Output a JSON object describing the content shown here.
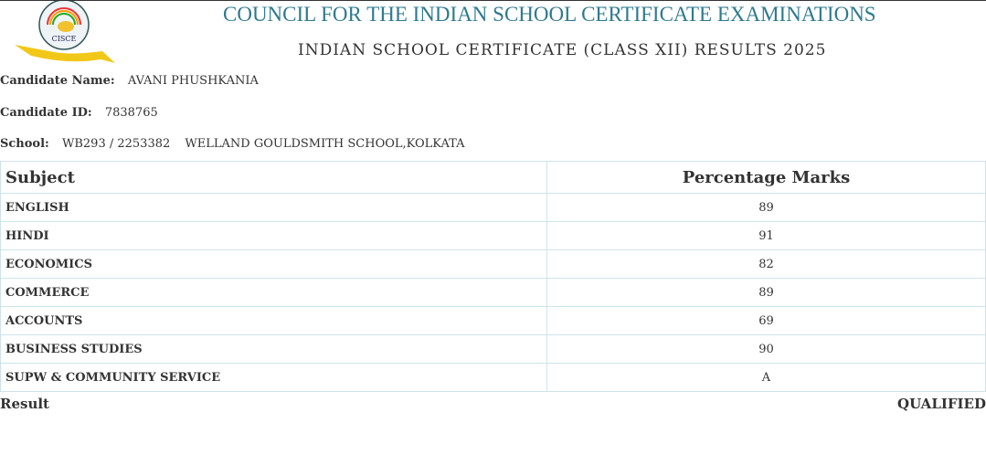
{
  "header": {
    "logo_text": "CISCE",
    "title": "COUNCIL FOR THE INDIAN SCHOOL CERTIFICATE EXAMINATIONS",
    "subtitle": "INDIAN SCHOOL CERTIFICATE (CLASS XII) RESULTS 2025"
  },
  "candidate": {
    "name_label": "Candidate Name:",
    "name": "AVANI PHUSHKANIA",
    "id_label": "Candidate ID:",
    "id": "7838765",
    "school_label": "School:",
    "school_code": "WB293 / 2253382",
    "school_name": "WELLAND GOULDSMITH SCHOOL,KOLKATA"
  },
  "table": {
    "headers": [
      "Subject",
      "Percentage Marks"
    ],
    "rows": [
      {
        "subject": "ENGLISH",
        "marks": "89"
      },
      {
        "subject": "HINDI",
        "marks": "91"
      },
      {
        "subject": "ECONOMICS",
        "marks": "82"
      },
      {
        "subject": "COMMERCE",
        "marks": "89"
      },
      {
        "subject": "ACCOUNTS",
        "marks": "69"
      },
      {
        "subject": "BUSINESS STUDIES",
        "marks": "90"
      },
      {
        "subject": "SUPW & COMMUNITY SERVICE",
        "marks": "A"
      }
    ]
  },
  "result": {
    "label": "Result",
    "value": "QUALIFIED"
  }
}
